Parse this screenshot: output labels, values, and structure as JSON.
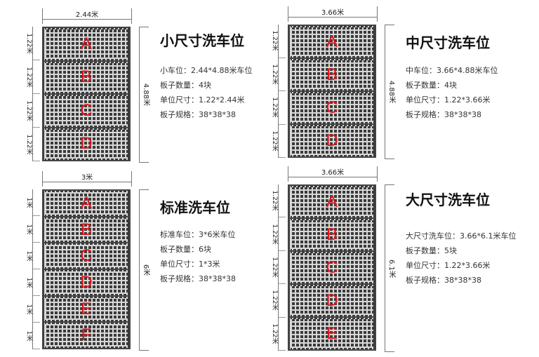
{
  "panels": [
    {
      "title": "小尺寸洗车位",
      "width_label": "2.44米",
      "height_label": "4.88米",
      "slab_label": "1.22米",
      "slabs": [
        "A",
        "B",
        "C",
        "D"
      ],
      "info": [
        "小车位：2.44*4.88米车位",
        "板子数量：4块",
        "单位尺寸：1.22*2.44米",
        "板子规格：38*38*38"
      ]
    },
    {
      "title": "中尺寸洗车位",
      "width_label": "3.66米",
      "height_label": "4.88米",
      "slab_label": "1.22米",
      "slabs": [
        "A",
        "B",
        "C",
        "D"
      ],
      "info": [
        "中车位：3.66*4.88米车位",
        "板子数量：4块",
        "单位尺寸：1.22*3.66米",
        "板子规格：38*38*38"
      ]
    },
    {
      "title": "标准洗车位",
      "width_label": "3米",
      "height_label": "6米",
      "slab_label": "1米",
      "slabs": [
        "A",
        "B",
        "C",
        "D",
        "E",
        "F"
      ],
      "info": [
        "标准车位：3*6米车位",
        "板子数量：6块",
        "单位尺寸：1*3米",
        "板子规格：38*38*38"
      ]
    },
    {
      "title": "大尺寸洗车位",
      "width_label": "3.66米",
      "height_label": "6.1米",
      "slab_label": "1.22米",
      "slabs": [
        "A",
        "B",
        "C",
        "D",
        "E"
      ],
      "info": [
        "大尺寸洗车位：3.66*6.1米车位",
        "板子数量：5块",
        "单位尺寸：1.22*3.66米",
        "板子规格：38*38*38"
      ]
    }
  ]
}
